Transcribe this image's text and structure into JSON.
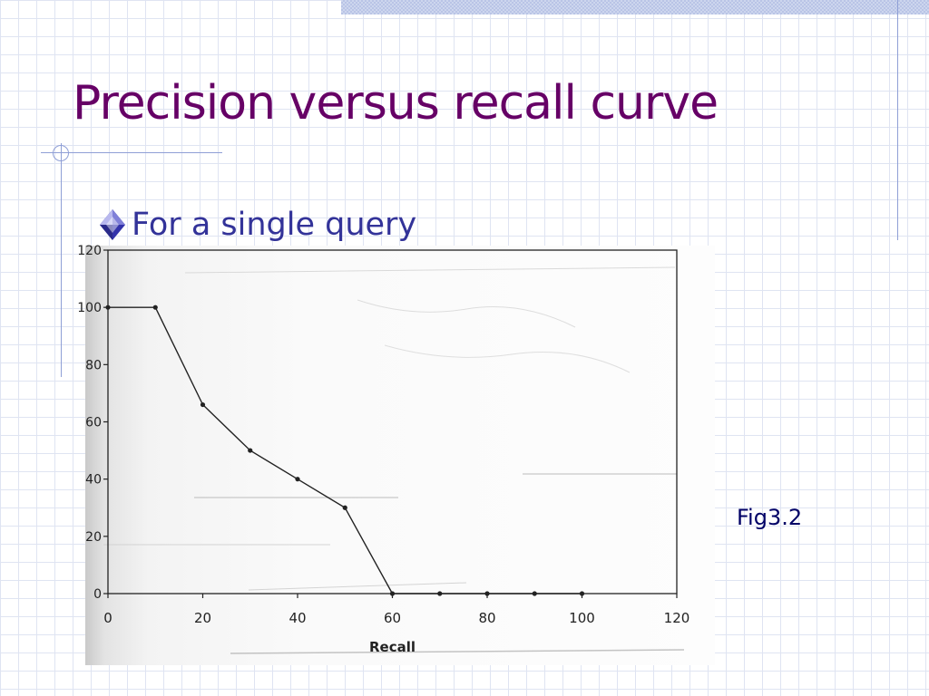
{
  "slide": {
    "title": "Precision versus recall curve",
    "bullet": "For a single query",
    "caption": "Fig3.2"
  },
  "colors": {
    "title": "#660066",
    "bullet_text": "#333399",
    "bullet_icon": "#3333aa",
    "caption": "#000066",
    "line": "#222222",
    "grid_lines": "#dfe4f2"
  },
  "icons": {
    "bullet": "diamond-bullet-icon"
  },
  "chart_data": {
    "type": "line",
    "xlabel": "Recall",
    "ylabel": "",
    "xlim": [
      0,
      120
    ],
    "ylim": [
      0,
      120
    ],
    "xticks": [
      "0",
      "20",
      "40",
      "60",
      "80",
      "100",
      "120"
    ],
    "yticks": [
      "0",
      "20",
      "40",
      "60",
      "80",
      "100",
      "120"
    ],
    "grid": false,
    "legend": "none",
    "series": [
      {
        "x": [
          0,
          10,
          20,
          30,
          40,
          50,
          60,
          70,
          80,
          90,
          100
        ],
        "y": [
          100,
          100,
          66,
          50,
          40,
          30,
          0,
          0,
          0,
          0,
          0
        ]
      }
    ]
  }
}
